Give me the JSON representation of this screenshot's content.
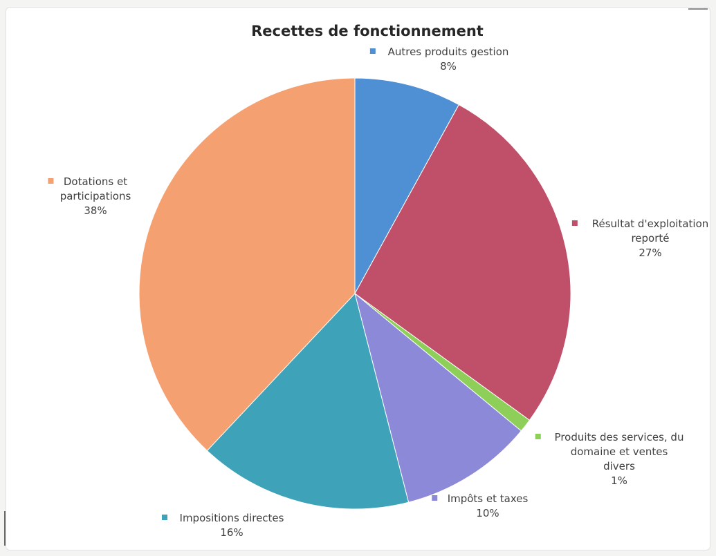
{
  "chart_data": {
    "type": "pie",
    "title": "Recettes de fonctionnement",
    "slices": [
      {
        "label_lines": [
          "Autres produits gestion"
        ],
        "value": 8,
        "value_label": "8%",
        "color": "#4f8fd4"
      },
      {
        "label_lines": [
          "Résultat d'exploitation",
          "reporté"
        ],
        "value": 27,
        "value_label": "27%",
        "color": "#c0506a"
      },
      {
        "label_lines": [
          "Produits des services, du",
          "domaine et ventes",
          "divers"
        ],
        "value": 1,
        "value_label": "1%",
        "color": "#8ecf5a"
      },
      {
        "label_lines": [
          "Impôts et taxes"
        ],
        "value": 10,
        "value_label": "10%",
        "color": "#8c8ad8"
      },
      {
        "label_lines": [
          "Impositions directes"
        ],
        "value": 16,
        "value_label": "16%",
        "color": "#3ea3b8"
      },
      {
        "label_lines": [
          "Dotations et",
          "participations"
        ],
        "value": 38,
        "value_label": "38%",
        "color": "#f5a070"
      }
    ]
  }
}
